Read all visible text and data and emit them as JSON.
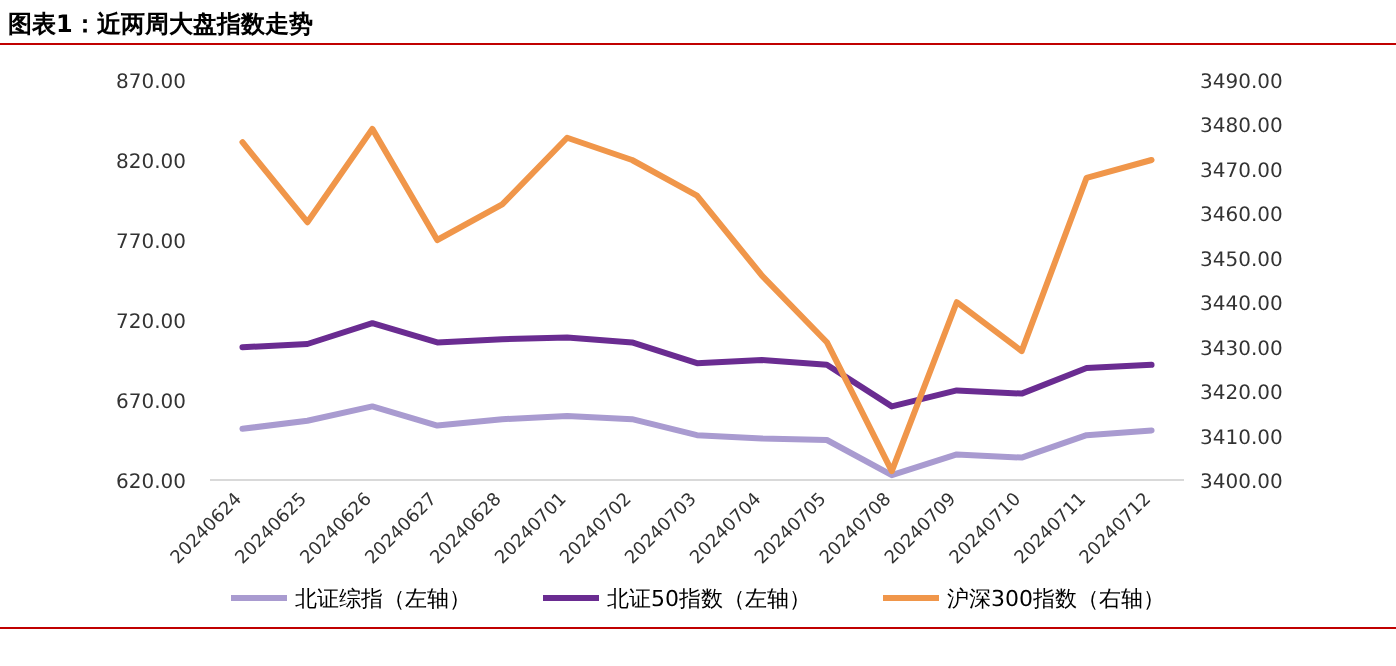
{
  "chart_data": {
    "type": "line",
    "title": "图表1：近两周大盘指数走势",
    "categories": [
      "20240624",
      "20240625",
      "20240626",
      "20240627",
      "20240628",
      "20240701",
      "20240702",
      "20240703",
      "20240704",
      "20240705",
      "20240708",
      "20240709",
      "20240710",
      "20240711",
      "20240712"
    ],
    "series": [
      {
        "name": "北证综指（左轴）",
        "color": "#a99bd0",
        "axis": "y",
        "values": [
          652,
          657,
          666,
          654,
          658,
          660,
          658,
          648,
          646,
          645,
          623,
          636,
          634,
          648,
          651
        ]
      },
      {
        "name": "北证50指数（左轴）",
        "color": "#6a2c91",
        "axis": "y",
        "values": [
          703,
          705,
          718,
          706,
          708,
          709,
          706,
          693,
          695,
          692,
          666,
          676,
          674,
          690,
          692
        ]
      },
      {
        "name": "沪深300指数（右轴）",
        "color": "#f0964a",
        "axis": "y2",
        "values": [
          3476,
          3458,
          3479,
          3454,
          3462,
          3477,
          3472,
          3464,
          3446,
          3431,
          3402,
          3440,
          3429,
          3468,
          3472
        ]
      }
    ],
    "ylim": [
      620,
      870
    ],
    "yticks": [
      {
        "value": 620,
        "label": "620.00"
      },
      {
        "value": 670,
        "label": "670.00"
      },
      {
        "value": 720,
        "label": "720.00"
      },
      {
        "value": 770,
        "label": "770.00"
      },
      {
        "value": 820,
        "label": "820.00"
      },
      {
        "value": 870,
        "label": "870.00"
      }
    ],
    "y2lim": [
      3400,
      3490
    ],
    "y2ticks": [
      {
        "value": 3400,
        "label": "3400.00"
      },
      {
        "value": 3410,
        "label": "3410.00"
      },
      {
        "value": 3420,
        "label": "3420.00"
      },
      {
        "value": 3430,
        "label": "3430.00"
      },
      {
        "value": 3440,
        "label": "3440.00"
      },
      {
        "value": 3450,
        "label": "3450.00"
      },
      {
        "value": 3460,
        "label": "3460.00"
      },
      {
        "value": 3470,
        "label": "3470.00"
      },
      {
        "value": 3480,
        "label": "3480.00"
      },
      {
        "value": 3490,
        "label": "3490.00"
      }
    ],
    "legend": "bottom",
    "line_style": "solid",
    "marker": "none"
  }
}
